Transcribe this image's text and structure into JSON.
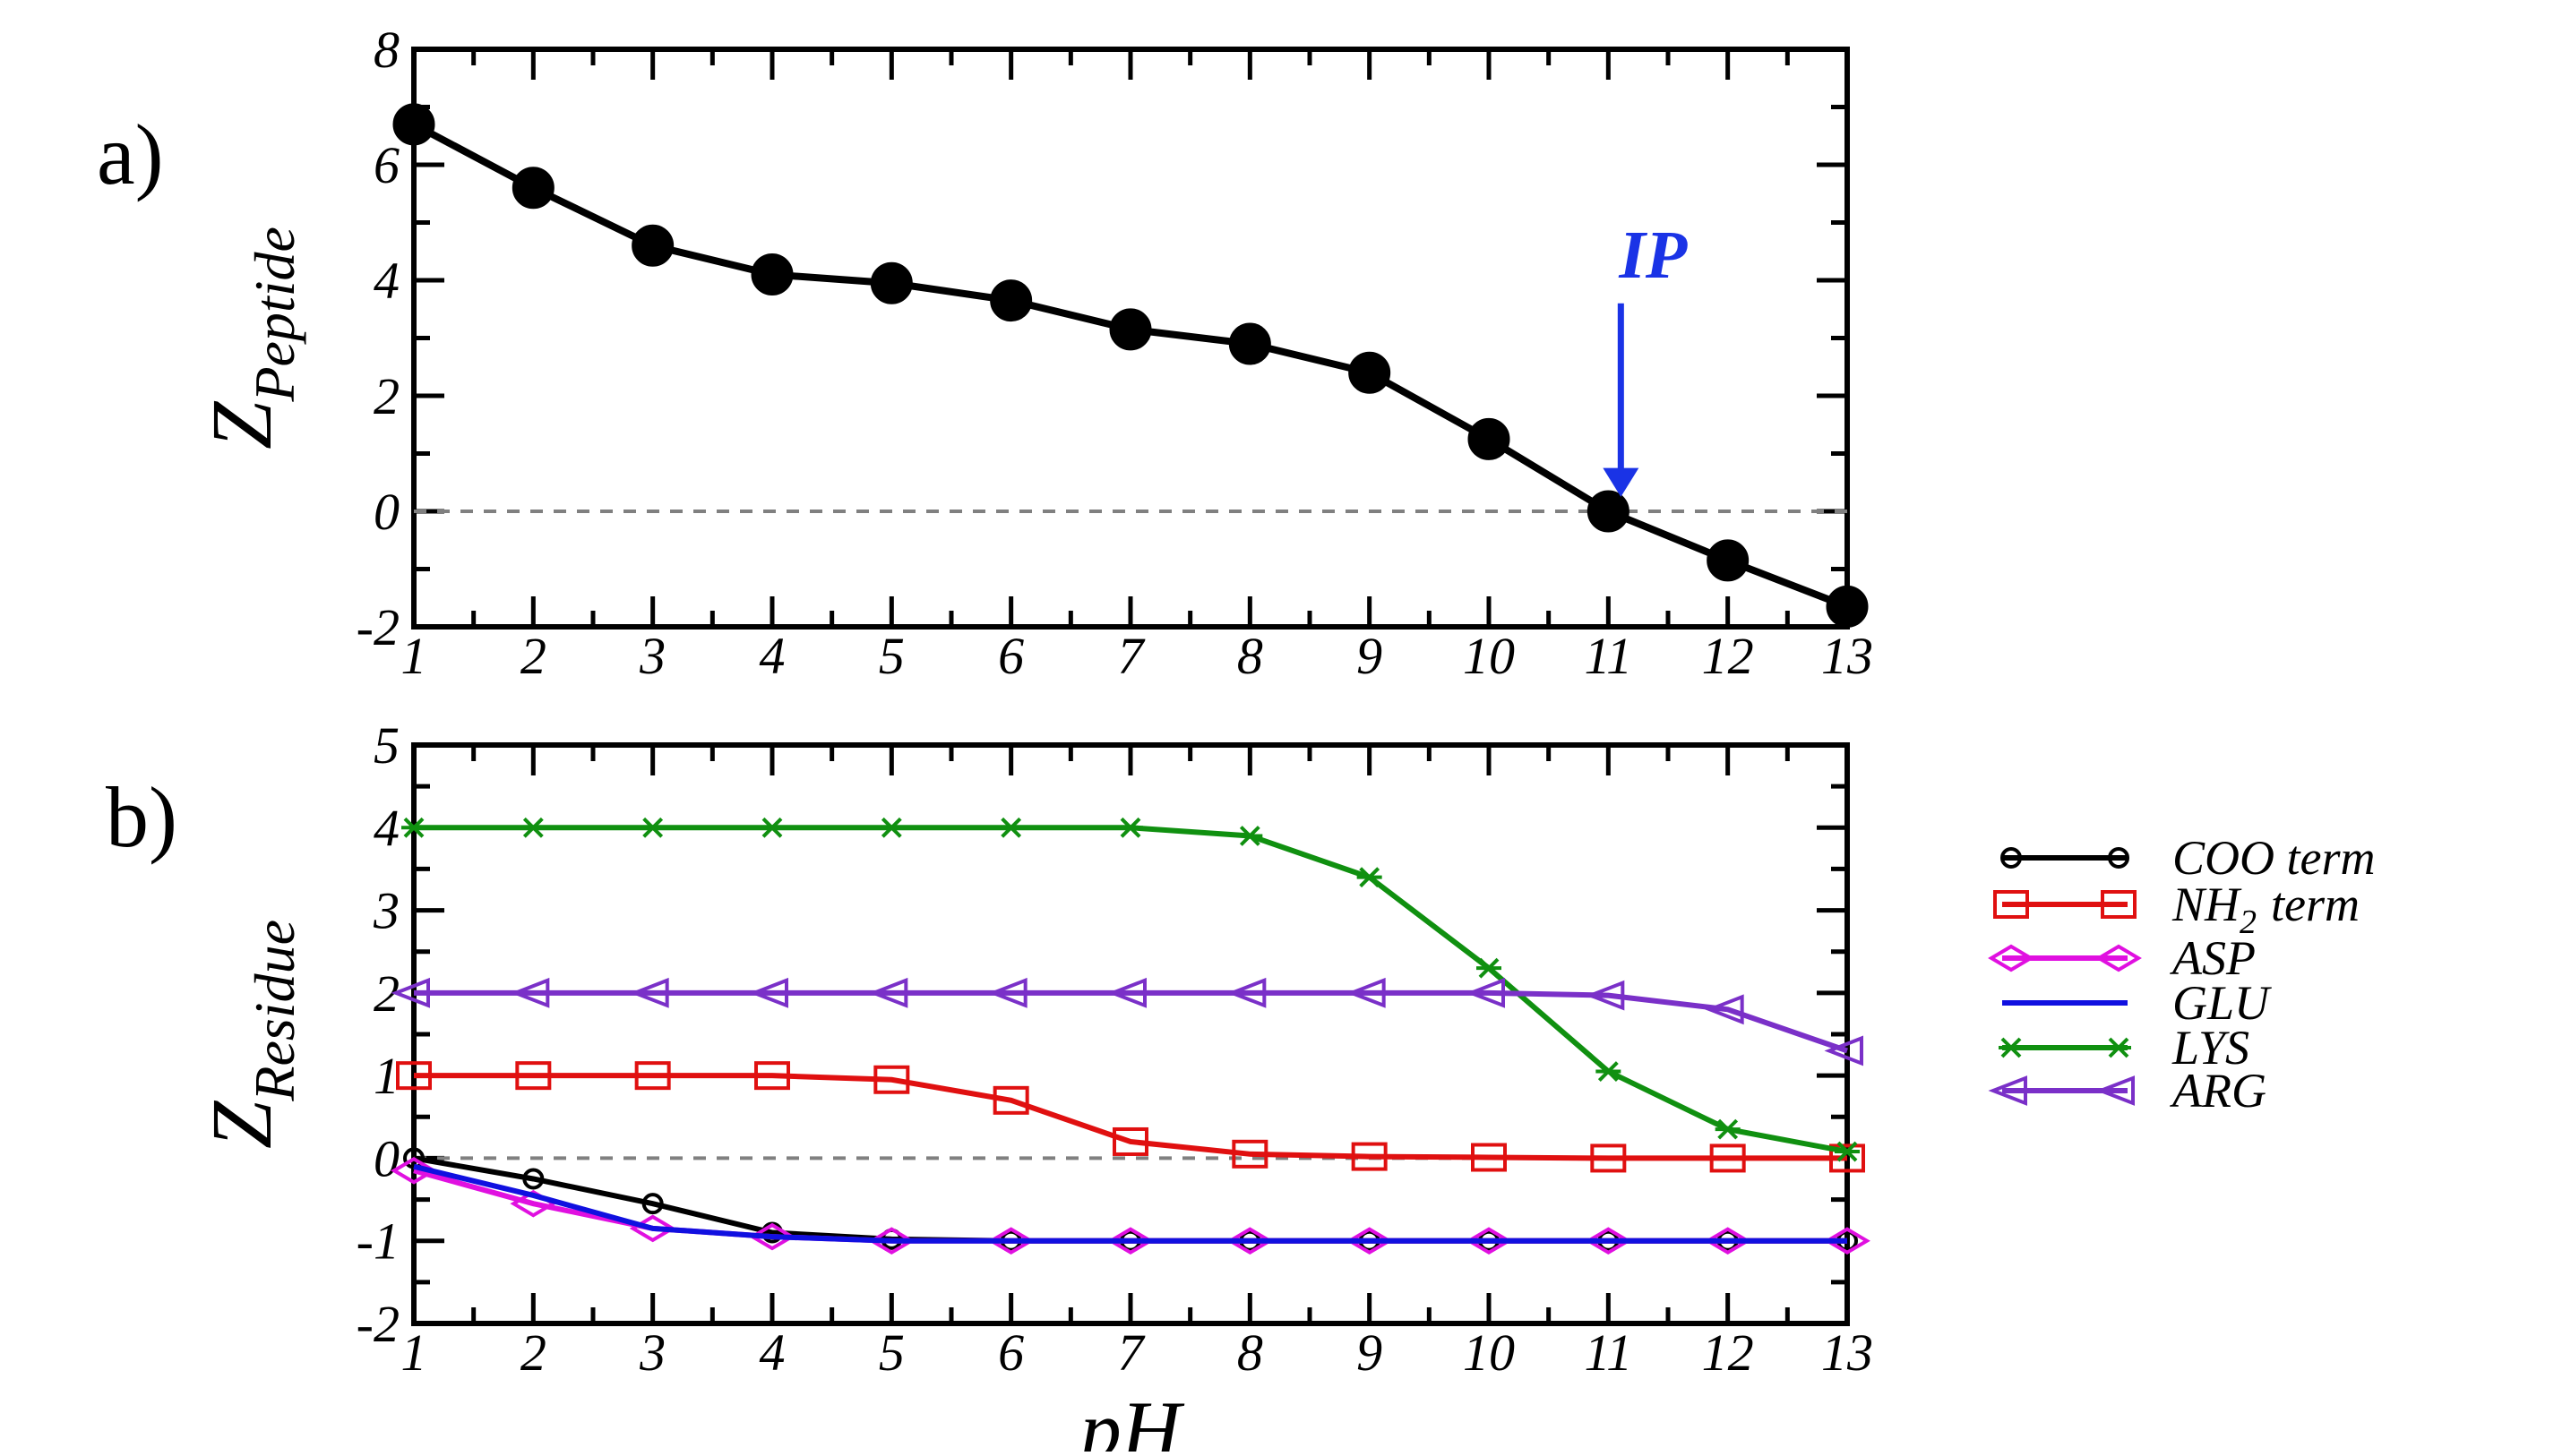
{
  "chart_data": [
    {
      "type": "line",
      "panel_label": "a)",
      "x": [
        1,
        2,
        3,
        4,
        5,
        6,
        7,
        8,
        9,
        10,
        11,
        12,
        13
      ],
      "xlim": [
        1,
        13
      ],
      "ylim": [
        -2,
        8
      ],
      "xticks": [
        "1",
        "2",
        "3",
        "4",
        "5",
        "6",
        "7",
        "8",
        "9",
        "10",
        "11",
        "12",
        "13"
      ],
      "yticks": [
        "-2",
        "0",
        "2",
        "4",
        "6",
        "8"
      ],
      "xlabel": "",
      "ylabel_main": "Z",
      "ylabel_sub": "Peptide",
      "zero_line": true,
      "series": [
        {
          "values": [
            6.7,
            5.6,
            4.6,
            4.1,
            3.95,
            3.65,
            3.15,
            2.9,
            2.4,
            1.25,
            0.0,
            -0.85,
            -1.65
          ],
          "color": "#000000",
          "marker": "filled-circle"
        }
      ],
      "annotation": {
        "text": "IP",
        "x": 11,
        "color": "#1a33e6"
      }
    },
    {
      "type": "line",
      "panel_label": "b)",
      "x": [
        1,
        2,
        3,
        4,
        5,
        6,
        7,
        8,
        9,
        10,
        11,
        12,
        13
      ],
      "xlim": [
        1,
        13
      ],
      "ylim": [
        -2,
        5
      ],
      "xticks": [
        "1",
        "2",
        "3",
        "4",
        "5",
        "6",
        "7",
        "8",
        "9",
        "10",
        "11",
        "12",
        "13"
      ],
      "yticks": [
        "-2",
        "-1",
        "0",
        "1",
        "2",
        "3",
        "4",
        "5"
      ],
      "xlabel": "pH",
      "ylabel_main": "Z",
      "ylabel_sub": "Residue",
      "zero_line": true,
      "legend_position": "right",
      "series": [
        {
          "name": "COO term",
          "values": [
            0.0,
            -0.25,
            -0.55,
            -0.9,
            -0.98,
            -1.0,
            -1.0,
            -1.0,
            -1.0,
            -1.0,
            -1.0,
            -1.0,
            -1.0
          ],
          "color": "#000000",
          "marker": "open-circle"
        },
        {
          "name": "NH",
          "name_sub": "2",
          "name_suffix": "term",
          "values": [
            1.0,
            1.0,
            1.0,
            1.0,
            0.95,
            0.7,
            0.2,
            0.05,
            0.02,
            0.01,
            0.0,
            0.0,
            0.0
          ],
          "color": "#e01010",
          "marker": "open-square"
        },
        {
          "name": "ASP",
          "values": [
            -0.15,
            -0.55,
            -0.85,
            -0.95,
            -1.0,
            -1.0,
            -1.0,
            -1.0,
            -1.0,
            -1.0,
            -1.0,
            -1.0,
            -1.0
          ],
          "color": "#e010e0",
          "marker": "open-diamond"
        },
        {
          "name": "GLU",
          "values": [
            -0.1,
            -0.45,
            -0.85,
            -0.95,
            -1.0,
            -1.0,
            -1.0,
            -1.0,
            -1.0,
            -1.0,
            -1.0,
            -1.0,
            -1.0
          ],
          "color": "#1010e0",
          "marker": "none"
        },
        {
          "name": "LYS",
          "values": [
            4.0,
            4.0,
            4.0,
            4.0,
            4.0,
            4.0,
            4.0,
            3.9,
            3.4,
            2.3,
            1.05,
            0.35,
            0.08
          ],
          "color": "#109010",
          "marker": "star"
        },
        {
          "name": "ARG",
          "values": [
            2.0,
            2.0,
            2.0,
            2.0,
            2.0,
            2.0,
            2.0,
            2.0,
            2.0,
            2.0,
            1.97,
            1.8,
            1.3
          ],
          "color": "#7a30c8",
          "marker": "open-triangle-left"
        }
      ]
    }
  ]
}
